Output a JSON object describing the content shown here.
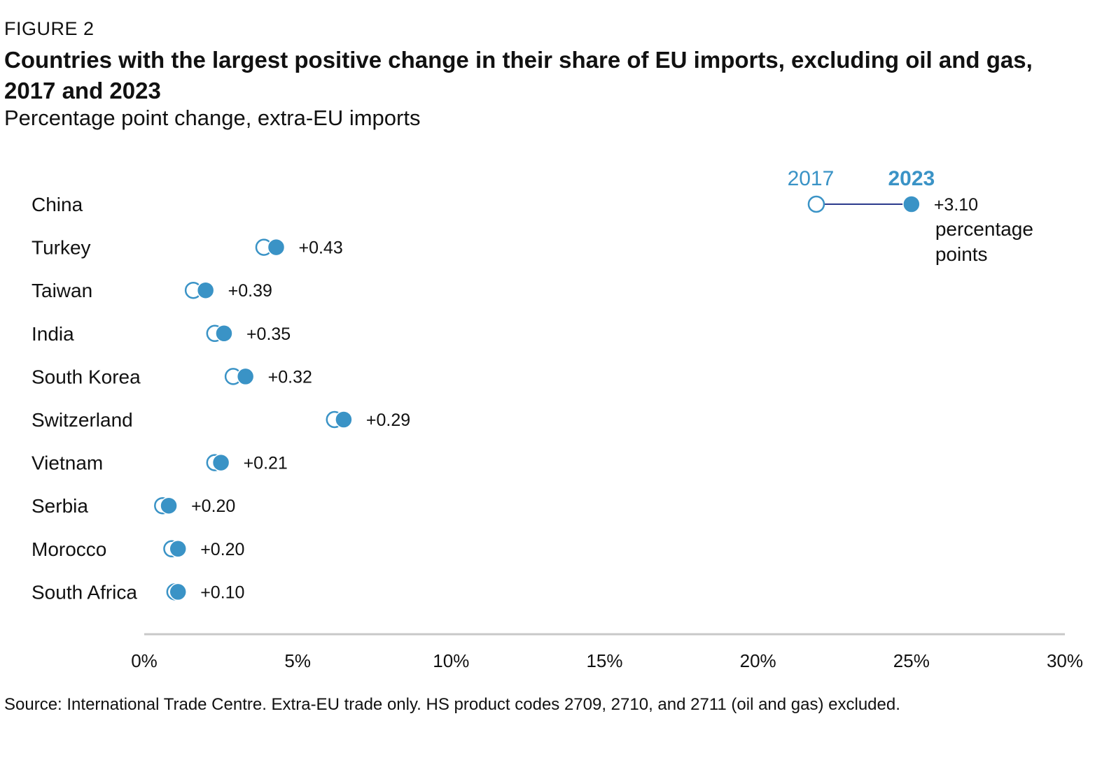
{
  "header": {
    "figure_label": "FIGURE 2",
    "title": "Countries with the largest positive change in their share of EU imports, excluding oil and gas, 2017 and 2023",
    "subtitle": "Percentage point change, extra-EU imports"
  },
  "footer": {
    "source": "Source: International Trade Centre. Extra-EU trade only. HS product codes 2709, 2710, and 2711 (oil and gas) excluded."
  },
  "colors": {
    "accent": "#3a93c6",
    "connector": "#2b3a8c",
    "axis": "#c8c8c8",
    "text": "#111111"
  },
  "chart_data": {
    "type": "dumbbell",
    "title": "Countries with the largest positive change in their share of EU imports, excluding oil and gas, 2017 and 2023",
    "subtitle": "Percentage point change, extra-EU imports",
    "series": [
      {
        "name": "2017",
        "marker": "open circle"
      },
      {
        "name": "2023",
        "marker": "filled circle"
      }
    ],
    "legend_placement": "top-right",
    "xlim": [
      0,
      30
    ],
    "x_ticks": [
      "0%",
      "5%",
      "10%",
      "15%",
      "20%",
      "25%",
      "30%"
    ],
    "grid": false,
    "unit_note": "percentage points",
    "categories": [
      "China",
      "Turkey",
      "Taiwan",
      "India",
      "South Korea",
      "Switzerland",
      "Vietnam",
      "Serbia",
      "Morocco",
      "South Africa"
    ],
    "values_2017": [
      21.9,
      3.9,
      1.6,
      2.3,
      2.9,
      6.2,
      2.3,
      0.6,
      0.9,
      1.0
    ],
    "values_2023": [
      25.0,
      4.3,
      2.0,
      2.6,
      3.3,
      6.5,
      2.5,
      0.8,
      1.1,
      1.1
    ],
    "change_labels": [
      "+3.10",
      "+0.43",
      "+0.39",
      "+0.35",
      "+0.32",
      "+0.29",
      "+0.21",
      "+0.20",
      "+0.20",
      "+0.10"
    ]
  }
}
